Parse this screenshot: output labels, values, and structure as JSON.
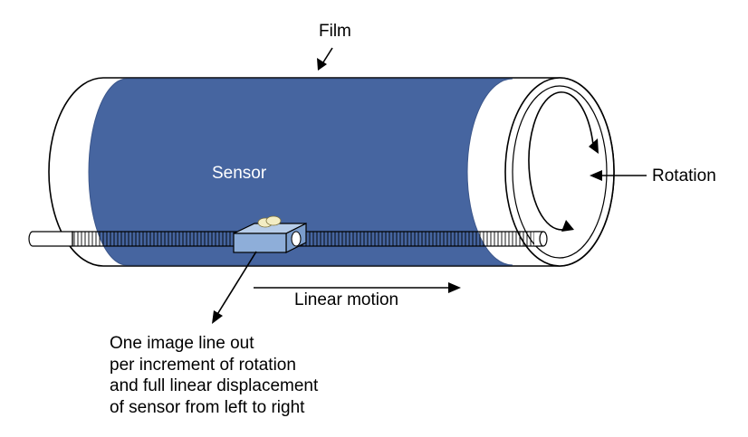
{
  "labels": {
    "film": "Film",
    "rotation": "Rotation",
    "sensor": "Sensor",
    "linear_motion": "Linear motion"
  },
  "caption": {
    "lines": [
      "One image line out",
      "per increment of rotation",
      "and full linear displacement",
      "of sensor from left to right"
    ]
  },
  "colors": {
    "film": "#4665a0",
    "cylinder": "#ffffff",
    "outline": "#000000",
    "sensor_block": "#8eaed9",
    "sensor_lens": "#f3edc4",
    "shaft": "#ffffff"
  }
}
